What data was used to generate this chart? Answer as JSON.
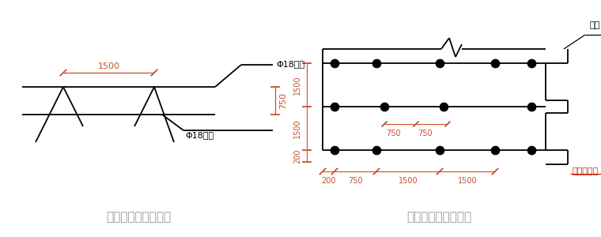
{
  "bg_color": "#ffffff",
  "line_color": "#000000",
  "dim_color": "#c8502a",
  "red_color": "#cc2200",
  "title1": "马凳加工形状示意图",
  "title2": "马凳平面布置示意图",
  "label_top_bar": "Φ18钢筋",
  "label_bot_bar": "Φ18钢筋",
  "label_zhidian": "支点",
  "label_jichu": "基础外边线"
}
